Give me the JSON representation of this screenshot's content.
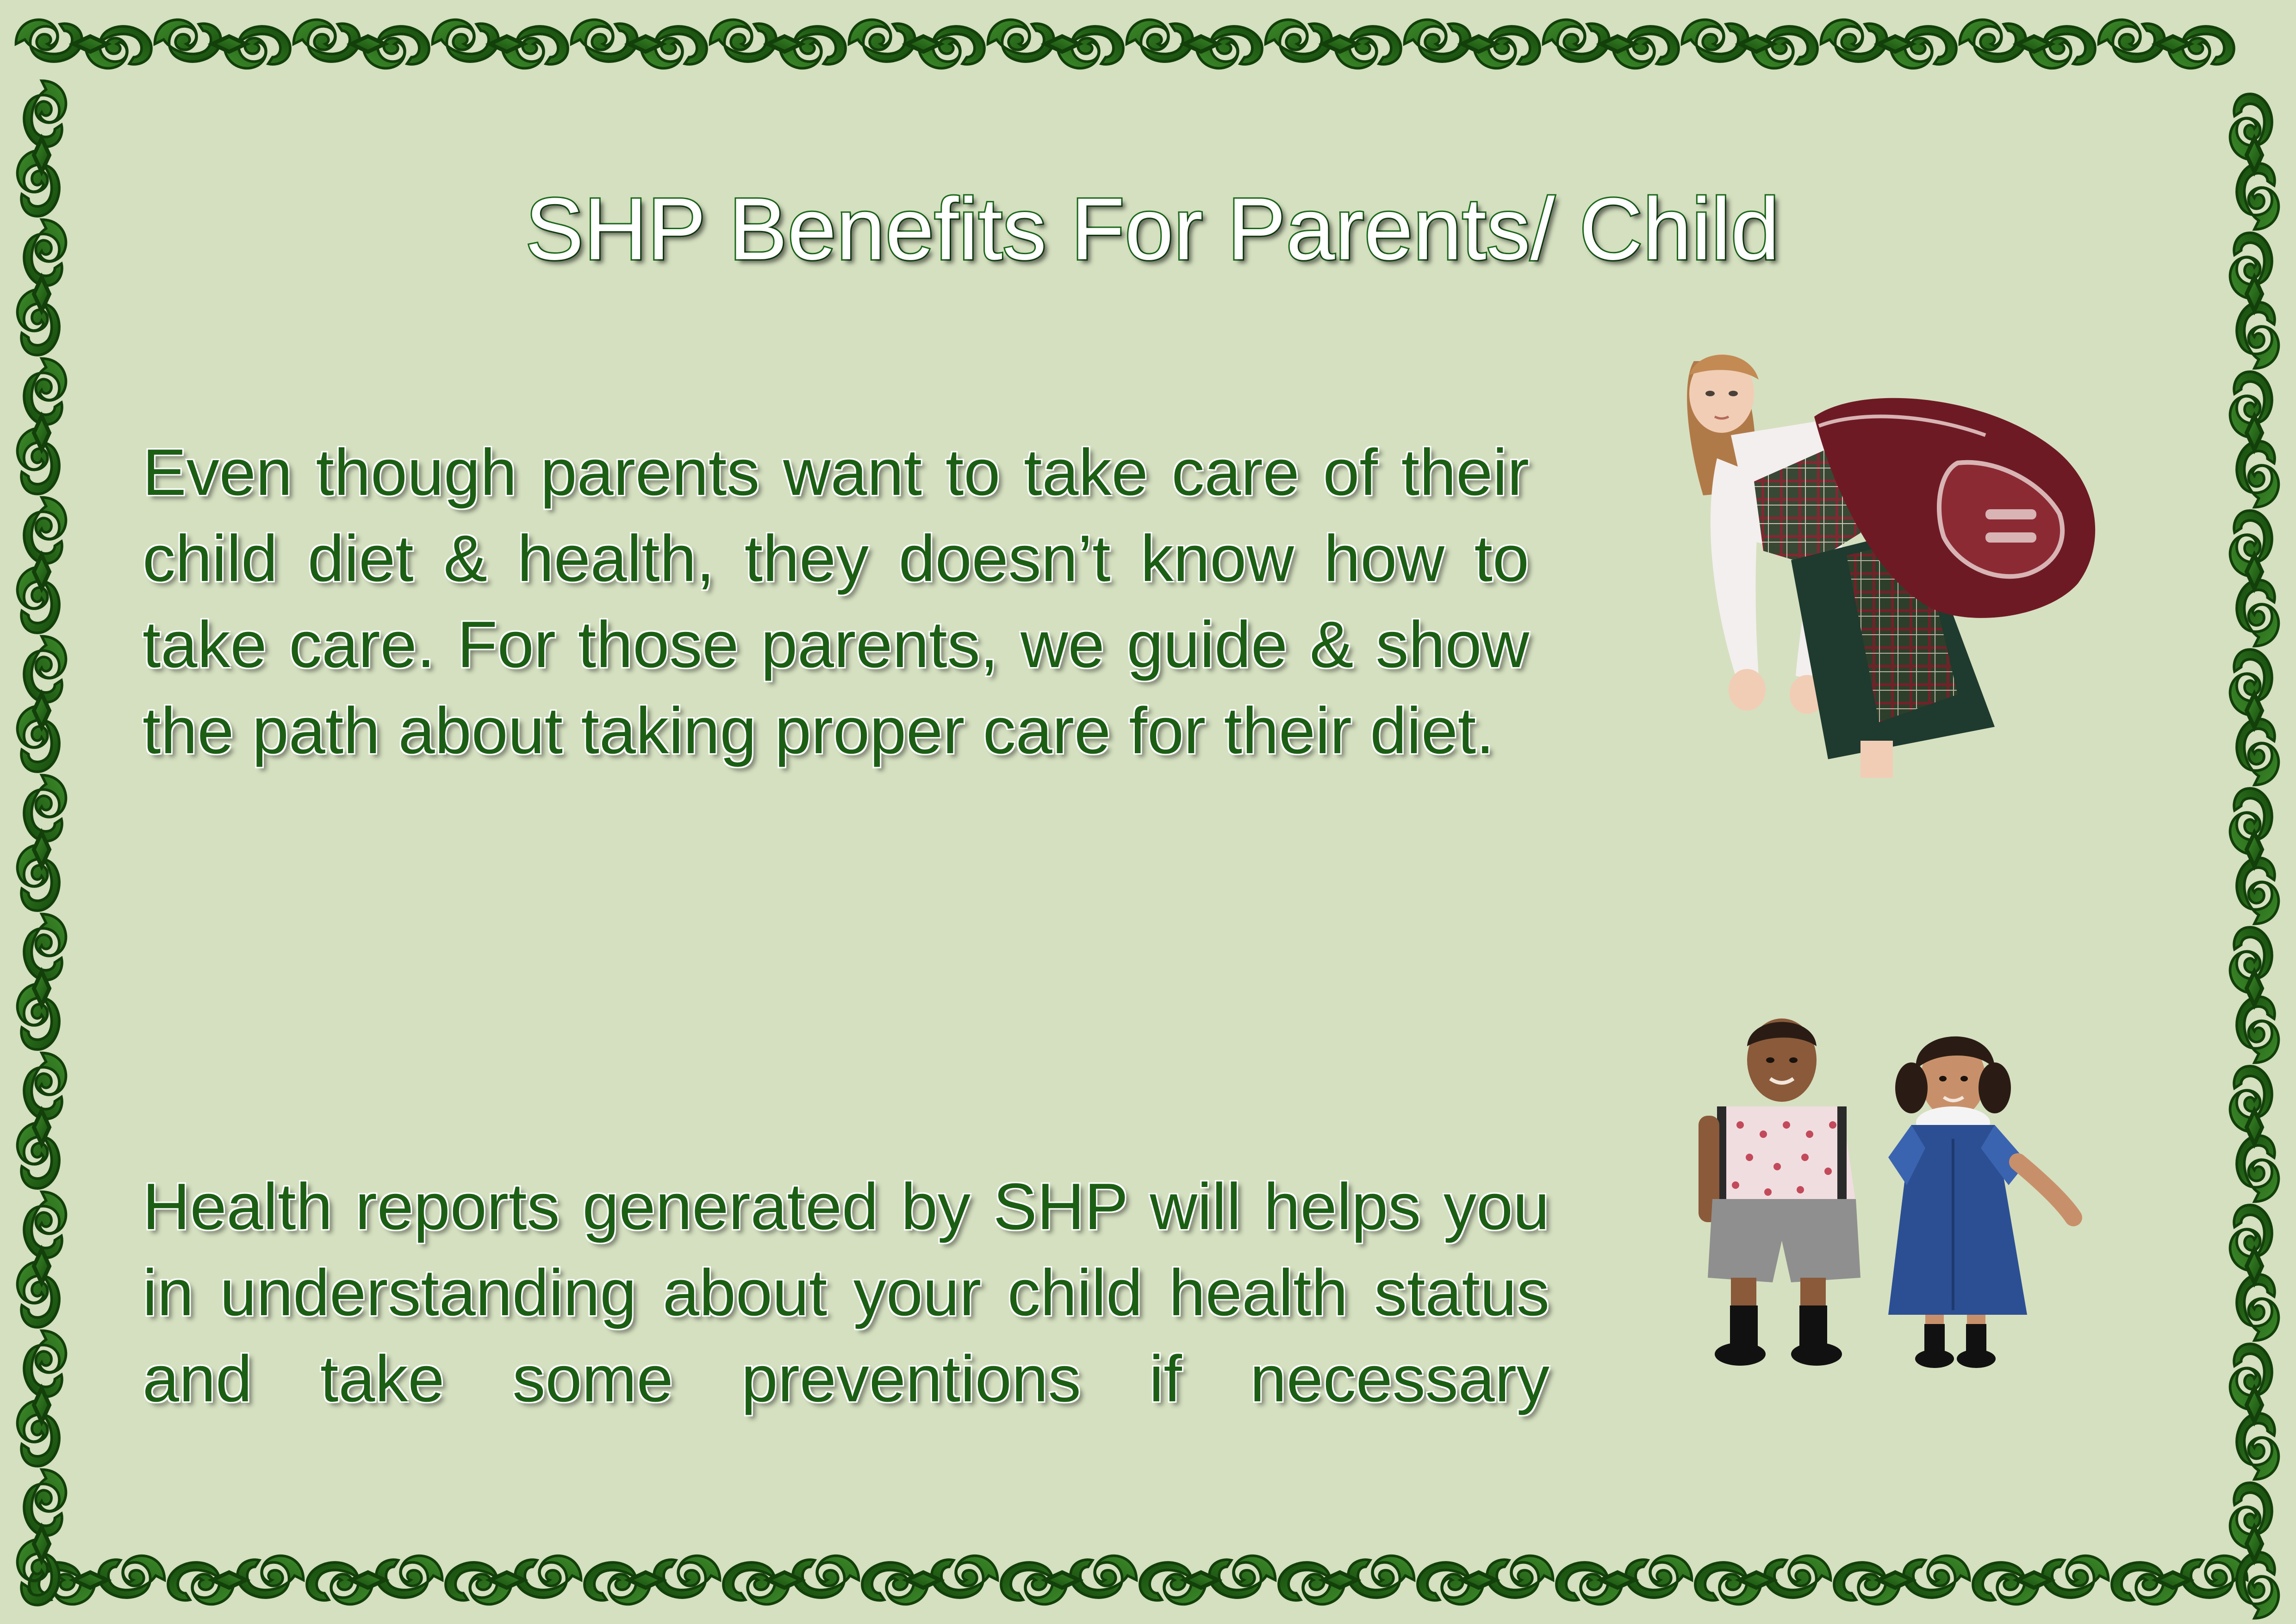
{
  "title": "SHP Benefits For Parents/ Child",
  "paragraphs": [
    "Even though parents want to take care of their child diet & health, they doesn’t know how to take care. For those parents, we guide & show the path about taking proper care for their diet.",
    "Health reports generated by SHP will helps you in understanding about your child health status and take some preventions if necessary"
  ],
  "illustrations": {
    "girl": "schoolgirl-with-backpack-illustration",
    "kids": "school-boy-and-girl-illustration"
  },
  "colors": {
    "background": "#d5e0c0",
    "border_green": "#1f5a12",
    "text_green": "#1b5e14",
    "title_outline": "#1b6a1b"
  },
  "border": {
    "icon": "swirl-ornament-border-icon"
  }
}
